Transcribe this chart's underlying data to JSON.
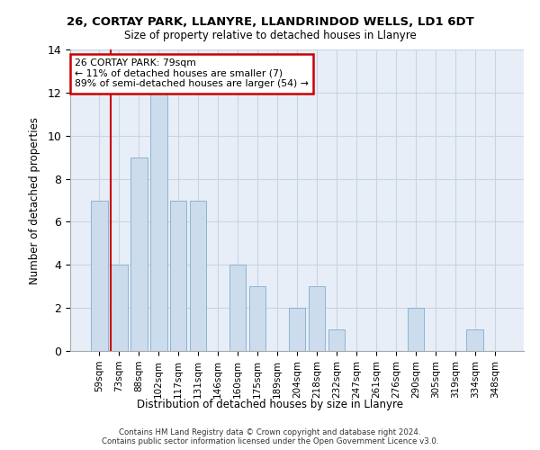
{
  "title": "26, CORTAY PARK, LLANYRE, LLANDRINDOD WELLS, LD1 6DT",
  "subtitle": "Size of property relative to detached houses in Llanyre",
  "xlabel": "Distribution of detached houses by size in Llanyre",
  "ylabel": "Number of detached properties",
  "categories": [
    "59sqm",
    "73sqm",
    "88sqm",
    "102sqm",
    "117sqm",
    "131sqm",
    "146sqm",
    "160sqm",
    "175sqm",
    "189sqm",
    "204sqm",
    "218sqm",
    "232sqm",
    "247sqm",
    "261sqm",
    "276sqm",
    "290sqm",
    "305sqm",
    "319sqm",
    "334sqm",
    "348sqm"
  ],
  "values": [
    7,
    4,
    9,
    12,
    7,
    7,
    0,
    4,
    3,
    0,
    2,
    3,
    1,
    0,
    0,
    0,
    2,
    0,
    0,
    1,
    0
  ],
  "bar_color": "#ccdcec",
  "bar_edge_color": "#8ab4d4",
  "grid_color": "#c8d4e4",
  "background_color": "#e8eef8",
  "annotation_text": "26 CORTAY PARK: 79sqm\n← 11% of detached houses are smaller (7)\n89% of semi-detached houses are larger (54) →",
  "annotation_box_color": "#cc0000",
  "redline_index": 1,
  "ylim": [
    0,
    14
  ],
  "yticks": [
    0,
    2,
    4,
    6,
    8,
    10,
    12,
    14
  ],
  "footnote": "Contains HM Land Registry data © Crown copyright and database right 2024.\nContains public sector information licensed under the Open Government Licence v3.0."
}
